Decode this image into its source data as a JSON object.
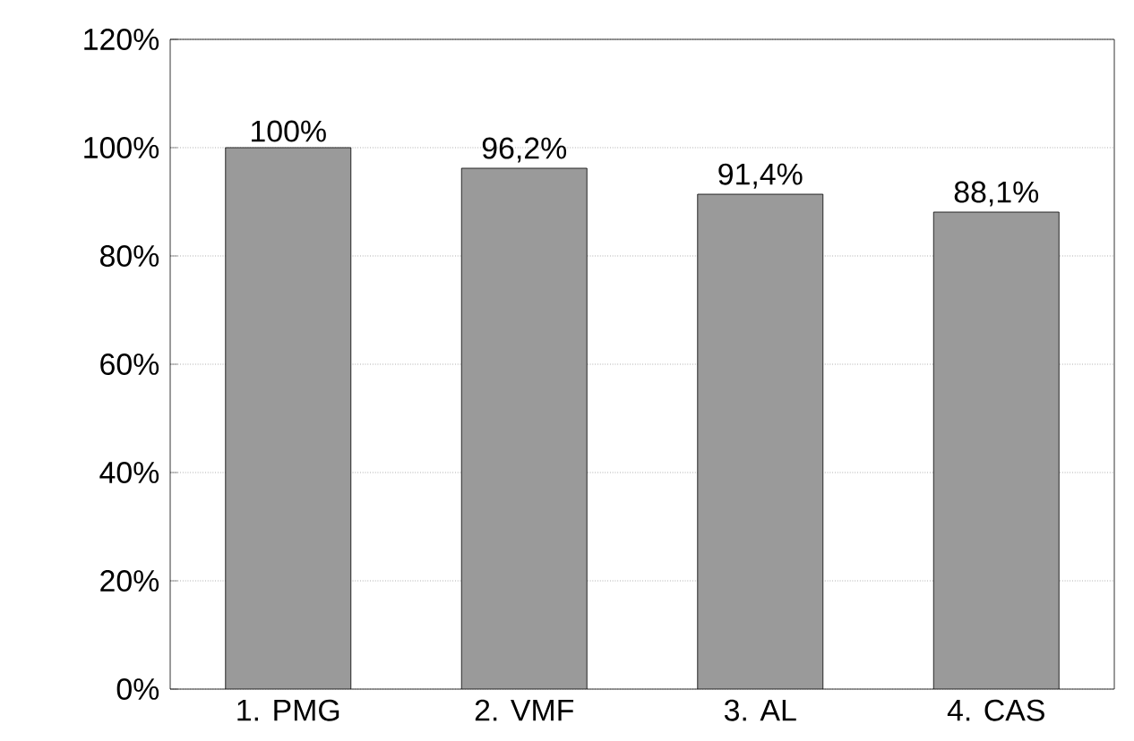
{
  "chart_data": {
    "type": "bar",
    "categories": [
      "1. PMG",
      "2. VMF",
      "3. AL",
      "4. CAS"
    ],
    "values": [
      100,
      96.2,
      91.4,
      88.1
    ],
    "value_labels": [
      "100%",
      "96,2%",
      "91,4%",
      "88,1%"
    ],
    "color": "#9a9a9a",
    "ylim": [
      0,
      120
    ],
    "yticks": [
      {
        "value": 0,
        "label": "0%"
      },
      {
        "value": 20,
        "label": "20%"
      },
      {
        "value": 40,
        "label": "40%"
      },
      {
        "value": 60,
        "label": "60%"
      },
      {
        "value": 80,
        "label": "80%"
      },
      {
        "value": 100,
        "label": "100%"
      },
      {
        "value": 120,
        "label": "120%"
      }
    ],
    "grid": "y"
  }
}
